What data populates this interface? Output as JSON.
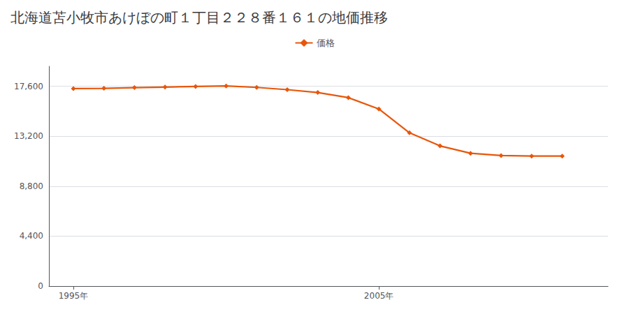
{
  "chart_data": {
    "type": "line",
    "title": "北海道苫小牧市あけぼの町１丁目２２８番１６１の地価推移",
    "x": [
      1995,
      1996,
      1997,
      1998,
      1999,
      2000,
      2001,
      2002,
      2003,
      2004,
      2005,
      2006,
      2007,
      2008,
      2009,
      2010,
      2011
    ],
    "series": [
      {
        "name": "価格",
        "color": "#e8560a",
        "marker": "diamond",
        "values": [
          17400,
          17420,
          17480,
          17530,
          17580,
          17630,
          17500,
          17300,
          17050,
          16600,
          15600,
          13500,
          12350,
          11700,
          11500,
          11450,
          11450
        ]
      }
    ],
    "xlim": [
      1994.2,
      2012.5
    ],
    "xticks": [
      {
        "value": 1995,
        "label": "1995年"
      },
      {
        "value": 2005,
        "label": "2005年"
      }
    ],
    "ylim": [
      0,
      19360
    ],
    "yticks": [
      0,
      {
        "value": 4400,
        "label": "4,400"
      },
      {
        "value": 8800,
        "label": "8,800"
      },
      {
        "value": 13200,
        "label": "13,200"
      },
      {
        "value": 17600,
        "label": "17,600"
      }
    ],
    "grid": true,
    "legend": "top"
  }
}
